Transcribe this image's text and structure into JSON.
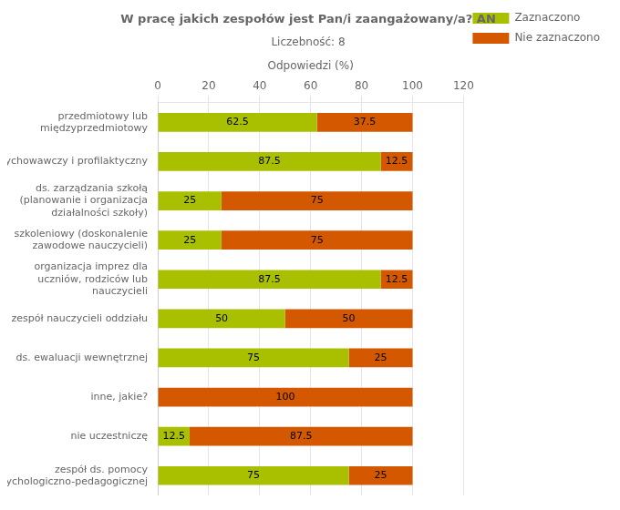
{
  "chart_data": {
    "type": "bar",
    "orientation": "horizontal",
    "stacked": true,
    "title": "W pracę jakich zespołów jest Pan/i zaangażowany/a? AN",
    "subtitle": "Liczebność: 8",
    "xlabel": "Odpowiedzi (%)",
    "categories": [
      "przedmiotowy lub\nmiędzyprzedmiotowy",
      "wychowawczy i profilaktyczny",
      "ds. zarządzania szkołą\n(planowanie i organizacja\ndziałalności szkoły)",
      "szkoleniowy (doskonalenie\nzawodowe nauczycieli)",
      "organizacja imprez dla\nuczniów, rodziców lub\nnauczycieli",
      "zespół nauczycieli oddziału",
      "ds. ewaluacji wewnętrznej",
      "inne, jakie?",
      "nie uczestniczę",
      "zespół ds. pomocy\npsychologiczno-pedagogicznej"
    ],
    "series": [
      {
        "name": "Zaznaczono",
        "color": "#a8c000",
        "values": [
          62.5,
          87.5,
          25.0,
          25.0,
          87.5,
          50.0,
          75.0,
          0.0,
          12.5,
          75.0
        ]
      },
      {
        "name": "Nie zaznaczono",
        "color": "#d45800",
        "values": [
          37.5,
          12.5,
          75.0,
          75.0,
          12.5,
          50.0,
          25.0,
          100.0,
          87.5,
          25.0
        ]
      }
    ],
    "xlim": [
      0,
      120
    ],
    "xticks": [
      0,
      20,
      40,
      60,
      80,
      100,
      120
    ],
    "grid": true,
    "legend": "right",
    "data_labels": true
  }
}
